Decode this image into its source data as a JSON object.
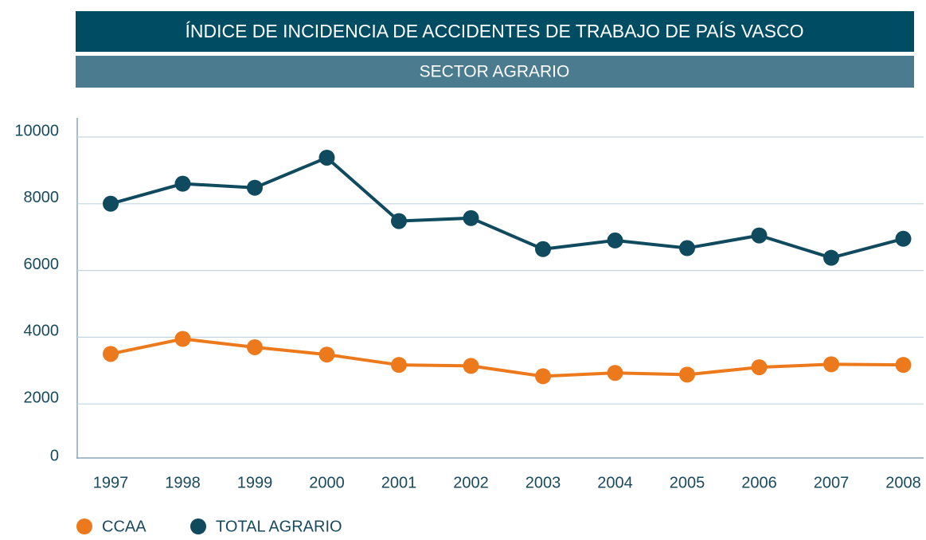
{
  "chart_data": {
    "type": "line",
    "title": "ÍNDICE DE INCIDENCIA DE ACCIDENTES DE TRABAJO DE PAÍS VASCO",
    "subtitle": "SECTOR AGRARIO",
    "categories": [
      "1997",
      "1998",
      "1999",
      "2000",
      "2001",
      "2002",
      "2003",
      "2004",
      "2005",
      "2006",
      "2007",
      "2008"
    ],
    "series": [
      {
        "name": "CCAA",
        "color": "#ec7a1c",
        "values": [
          3500,
          3950,
          3700,
          3480,
          3170,
          3140,
          2830,
          2930,
          2880,
          3100,
          3190,
          3170
        ]
      },
      {
        "name": "TOTAL AGRARIO",
        "color": "#0f4a5e",
        "values": [
          8000,
          8600,
          8480,
          9380,
          7480,
          7570,
          6640,
          6900,
          6670,
          7050,
          6380,
          6950
        ]
      }
    ],
    "ylim": [
      0,
      10000
    ],
    "yticks": [
      0,
      2000,
      4000,
      6000,
      8000,
      10000
    ],
    "grid": true
  }
}
